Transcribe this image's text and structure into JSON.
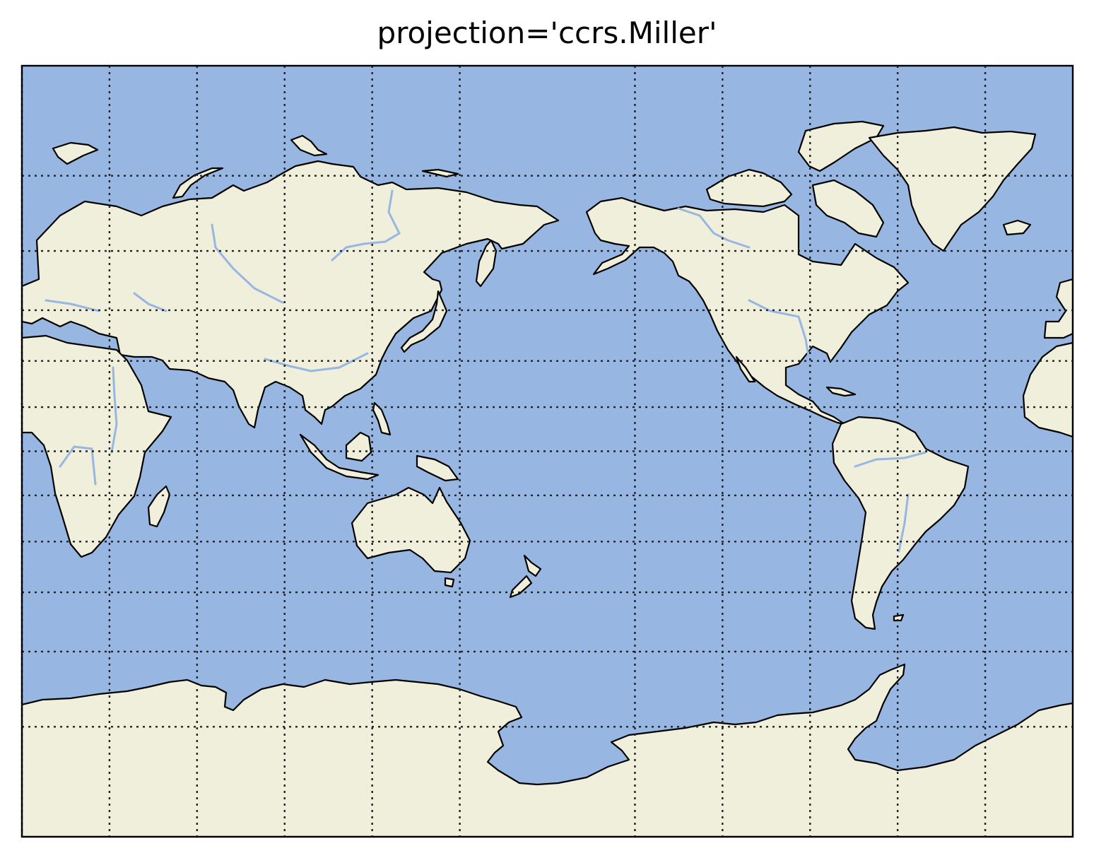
{
  "title": "projection='ccrs.Miller'",
  "projection": "Miller",
  "central_longitude": 180,
  "colors": {
    "ocean": "#97b6e1",
    "land": "#efefdb",
    "coastline": "#000000",
    "rivers": "#97b6e1",
    "gridlines": "#222222",
    "frame": "#000000"
  },
  "gridlines": {
    "style": "dotted",
    "meridians_deg": [
      -150,
      -120,
      -90,
      -60,
      -30,
      0,
      30,
      60,
      90,
      120,
      150
    ],
    "parallels_deg": [
      75,
      60,
      45,
      30,
      15,
      0,
      -15,
      -30,
      -45,
      -60,
      -75
    ]
  },
  "features": [
    "ocean",
    "land",
    "coastline",
    "rivers",
    "lakes",
    "gridlines"
  ]
}
